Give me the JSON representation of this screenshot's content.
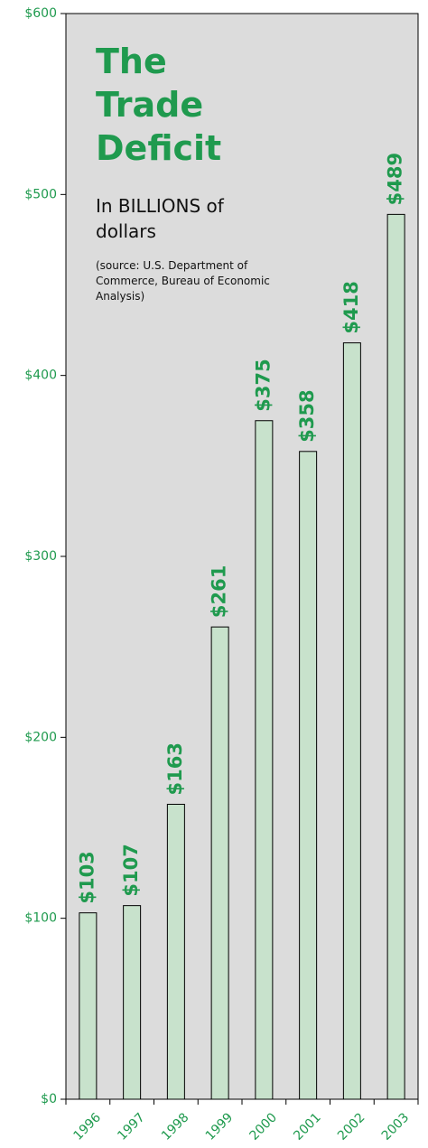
{
  "chart_data": {
    "type": "bar",
    "title": "The Trade Deficit",
    "subtitle": "In BILLIONS of dollars",
    "source": "(source: U.S. Department of Commerce, Bureau of Economic Analysis)",
    "categories": [
      "1996",
      "1997",
      "1998",
      "1999",
      "2000",
      "2001",
      "2002",
      "2003"
    ],
    "values": [
      103,
      107,
      163,
      261,
      375,
      358,
      418,
      489
    ],
    "value_labels": [
      "$103",
      "$107",
      "$163",
      "$261",
      "$375",
      "$358",
      "$418",
      "$489"
    ],
    "color": "#c8e2cc",
    "ylim": [
      0,
      600
    ],
    "yticks": [
      {
        "value": 0,
        "label": "$0"
      },
      {
        "value": 100,
        "label": "$100"
      },
      {
        "value": 200,
        "label": "$200"
      },
      {
        "value": 300,
        "label": "$300"
      },
      {
        "value": 400,
        "label": "$400"
      },
      {
        "value": 500,
        "label": "$500"
      },
      {
        "value": 600,
        "label": "$600"
      }
    ]
  }
}
